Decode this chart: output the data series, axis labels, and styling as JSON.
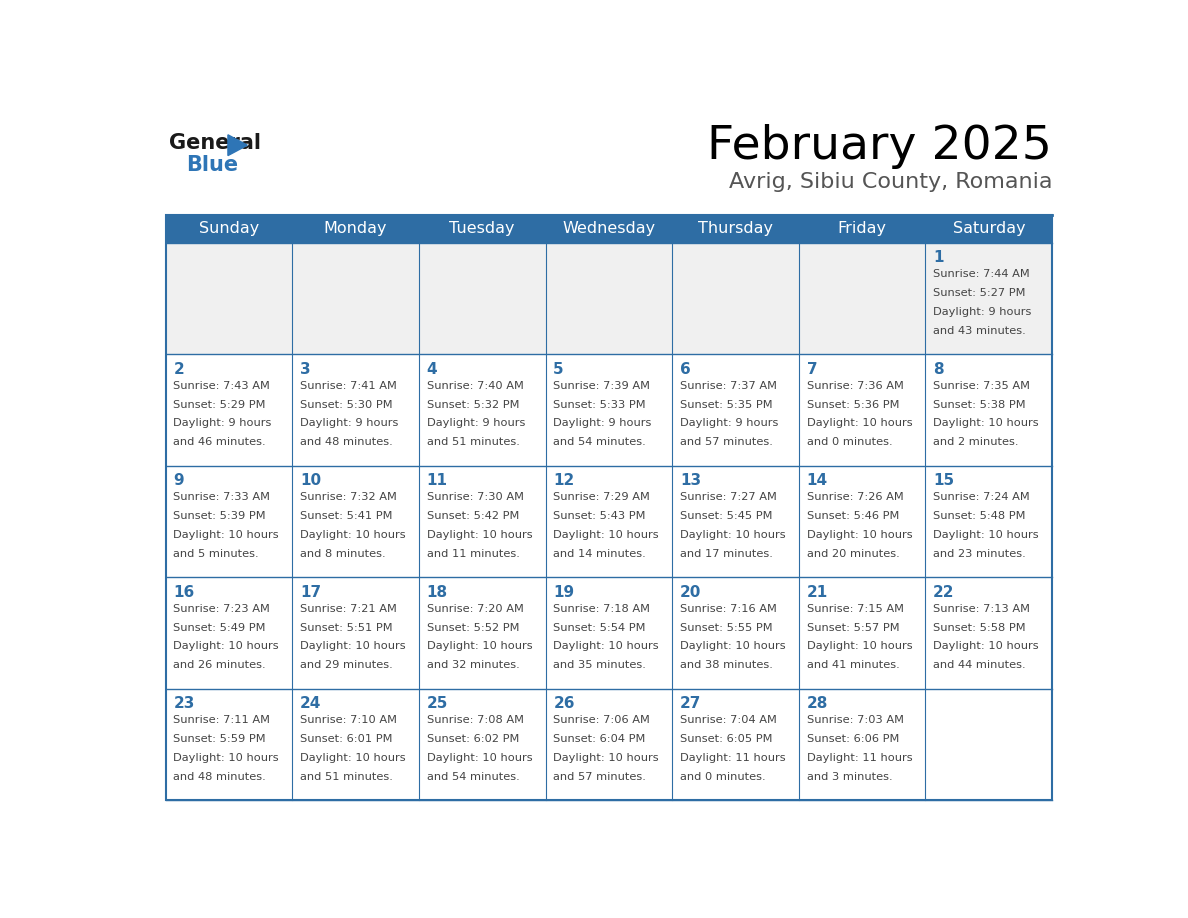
{
  "title": "February 2025",
  "subtitle": "Avrig, Sibiu County, Romania",
  "days_of_week": [
    "Sunday",
    "Monday",
    "Tuesday",
    "Wednesday",
    "Thursday",
    "Friday",
    "Saturday"
  ],
  "header_bg": "#2E6DA4",
  "header_text": "#FFFFFF",
  "cell_bg_normal": "#FFFFFF",
  "cell_bg_firstrow": "#F0F0F0",
  "text_color": "#444444",
  "day_num_color": "#2E6DA4",
  "border_color": "#2E6DA4",
  "logo_general_color": "#1a1a1a",
  "logo_blue_color": "#2E75B6",
  "calendar_data": [
    [
      null,
      null,
      null,
      null,
      null,
      null,
      {
        "day": 1,
        "sunrise": "7:44 AM",
        "sunset": "5:27 PM",
        "daylight": "9 hours and 43 minutes."
      }
    ],
    [
      {
        "day": 2,
        "sunrise": "7:43 AM",
        "sunset": "5:29 PM",
        "daylight": "9 hours and 46 minutes."
      },
      {
        "day": 3,
        "sunrise": "7:41 AM",
        "sunset": "5:30 PM",
        "daylight": "9 hours and 48 minutes."
      },
      {
        "day": 4,
        "sunrise": "7:40 AM",
        "sunset": "5:32 PM",
        "daylight": "9 hours and 51 minutes."
      },
      {
        "day": 5,
        "sunrise": "7:39 AM",
        "sunset": "5:33 PM",
        "daylight": "9 hours and 54 minutes."
      },
      {
        "day": 6,
        "sunrise": "7:37 AM",
        "sunset": "5:35 PM",
        "daylight": "9 hours and 57 minutes."
      },
      {
        "day": 7,
        "sunrise": "7:36 AM",
        "sunset": "5:36 PM",
        "daylight": "10 hours and 0 minutes."
      },
      {
        "day": 8,
        "sunrise": "7:35 AM",
        "sunset": "5:38 PM",
        "daylight": "10 hours and 2 minutes."
      }
    ],
    [
      {
        "day": 9,
        "sunrise": "7:33 AM",
        "sunset": "5:39 PM",
        "daylight": "10 hours and 5 minutes."
      },
      {
        "day": 10,
        "sunrise": "7:32 AM",
        "sunset": "5:41 PM",
        "daylight": "10 hours and 8 minutes."
      },
      {
        "day": 11,
        "sunrise": "7:30 AM",
        "sunset": "5:42 PM",
        "daylight": "10 hours and 11 minutes."
      },
      {
        "day": 12,
        "sunrise": "7:29 AM",
        "sunset": "5:43 PM",
        "daylight": "10 hours and 14 minutes."
      },
      {
        "day": 13,
        "sunrise": "7:27 AM",
        "sunset": "5:45 PM",
        "daylight": "10 hours and 17 minutes."
      },
      {
        "day": 14,
        "sunrise": "7:26 AM",
        "sunset": "5:46 PM",
        "daylight": "10 hours and 20 minutes."
      },
      {
        "day": 15,
        "sunrise": "7:24 AM",
        "sunset": "5:48 PM",
        "daylight": "10 hours and 23 minutes."
      }
    ],
    [
      {
        "day": 16,
        "sunrise": "7:23 AM",
        "sunset": "5:49 PM",
        "daylight": "10 hours and 26 minutes."
      },
      {
        "day": 17,
        "sunrise": "7:21 AM",
        "sunset": "5:51 PM",
        "daylight": "10 hours and 29 minutes."
      },
      {
        "day": 18,
        "sunrise": "7:20 AM",
        "sunset": "5:52 PM",
        "daylight": "10 hours and 32 minutes."
      },
      {
        "day": 19,
        "sunrise": "7:18 AM",
        "sunset": "5:54 PM",
        "daylight": "10 hours and 35 minutes."
      },
      {
        "day": 20,
        "sunrise": "7:16 AM",
        "sunset": "5:55 PM",
        "daylight": "10 hours and 38 minutes."
      },
      {
        "day": 21,
        "sunrise": "7:15 AM",
        "sunset": "5:57 PM",
        "daylight": "10 hours and 41 minutes."
      },
      {
        "day": 22,
        "sunrise": "7:13 AM",
        "sunset": "5:58 PM",
        "daylight": "10 hours and 44 minutes."
      }
    ],
    [
      {
        "day": 23,
        "sunrise": "7:11 AM",
        "sunset": "5:59 PM",
        "daylight": "10 hours and 48 minutes."
      },
      {
        "day": 24,
        "sunrise": "7:10 AM",
        "sunset": "6:01 PM",
        "daylight": "10 hours and 51 minutes."
      },
      {
        "day": 25,
        "sunrise": "7:08 AM",
        "sunset": "6:02 PM",
        "daylight": "10 hours and 54 minutes."
      },
      {
        "day": 26,
        "sunrise": "7:06 AM",
        "sunset": "6:04 PM",
        "daylight": "10 hours and 57 minutes."
      },
      {
        "day": 27,
        "sunrise": "7:04 AM",
        "sunset": "6:05 PM",
        "daylight": "11 hours and 0 minutes."
      },
      {
        "day": 28,
        "sunrise": "7:03 AM",
        "sunset": "6:06 PM",
        "daylight": "11 hours and 3 minutes."
      },
      null
    ]
  ]
}
